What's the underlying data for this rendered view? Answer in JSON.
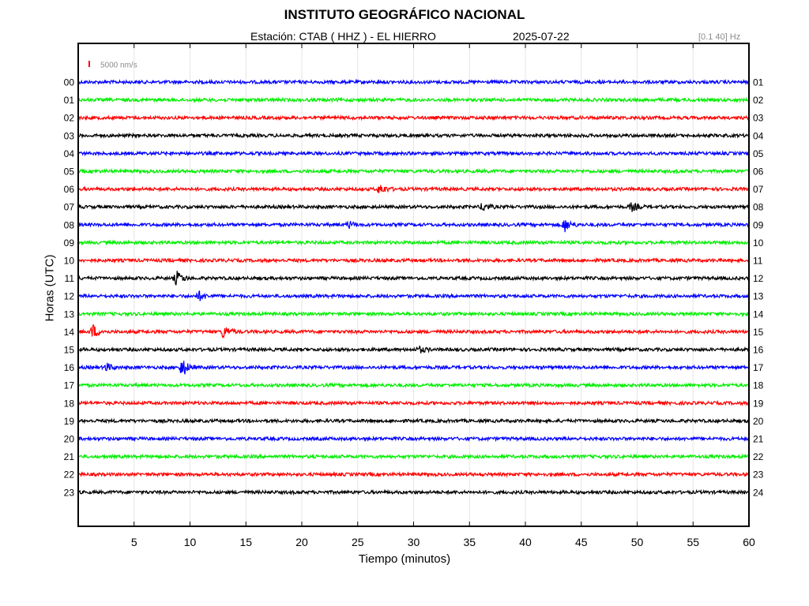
{
  "chart_data": {
    "type": "line",
    "title": "INSTITUTO GEOGRÁFICO NACIONAL",
    "station_text": "Estación:  CTAB ( HHZ ) - EL HIERRO",
    "date_text": "2025-07-22",
    "filter_text": "[0.1 40] Hz",
    "scale_label": "5000 nm/s",
    "scale_color": "#ff0000",
    "xlabel": "Tiempo (minutos)",
    "ylabel": "Horas (UTC)",
    "xlim": [
      0,
      60
    ],
    "x_ticks": [
      "5",
      "10",
      "15",
      "20",
      "25",
      "30",
      "35",
      "40",
      "45",
      "50",
      "55",
      "60"
    ],
    "x_tick_values": [
      5,
      10,
      15,
      20,
      25,
      30,
      35,
      40,
      45,
      50,
      55,
      60
    ],
    "left_hour_labels": [
      "00",
      "01",
      "02",
      "03",
      "04",
      "05",
      "06",
      "07",
      "08",
      "09",
      "10",
      "11",
      "12",
      "13",
      "14",
      "15",
      "16",
      "17",
      "18",
      "19",
      "20",
      "21",
      "22",
      "23"
    ],
    "right_hour_labels": [
      "01",
      "02",
      "03",
      "04",
      "05",
      "06",
      "07",
      "08",
      "09",
      "10",
      "11",
      "12",
      "13",
      "14",
      "15",
      "16",
      "17",
      "18",
      "19",
      "20",
      "21",
      "22",
      "23",
      "24"
    ],
    "trace_colors": [
      "#0000ff",
      "#00ee00",
      "#ff0000",
      "#000000"
    ],
    "events": [
      {
        "hour": 6,
        "minute": 27.0,
        "amplitude": 1.6
      },
      {
        "hour": 7,
        "minute": 36.2,
        "amplitude": 1.4
      },
      {
        "hour": 7,
        "minute": 49.5,
        "amplitude": 1.3
      },
      {
        "hour": 8,
        "minute": 24.2,
        "amplitude": 1.0
      },
      {
        "hour": 8,
        "minute": 43.5,
        "amplitude": 2.2
      },
      {
        "hour": 11,
        "minute": 8.8,
        "amplitude": 2.2
      },
      {
        "hour": 12,
        "minute": 10.8,
        "amplitude": 1.4
      },
      {
        "hour": 14,
        "minute": 1.3,
        "amplitude": 2.2
      },
      {
        "hour": 14,
        "minute": 13.0,
        "amplitude": 2.0
      },
      {
        "hour": 15,
        "minute": 30.5,
        "amplitude": 1.0
      },
      {
        "hour": 16,
        "minute": 2.5,
        "amplitude": 1.3
      },
      {
        "hour": 16,
        "minute": 9.3,
        "amplitude": 3.0
      }
    ]
  }
}
